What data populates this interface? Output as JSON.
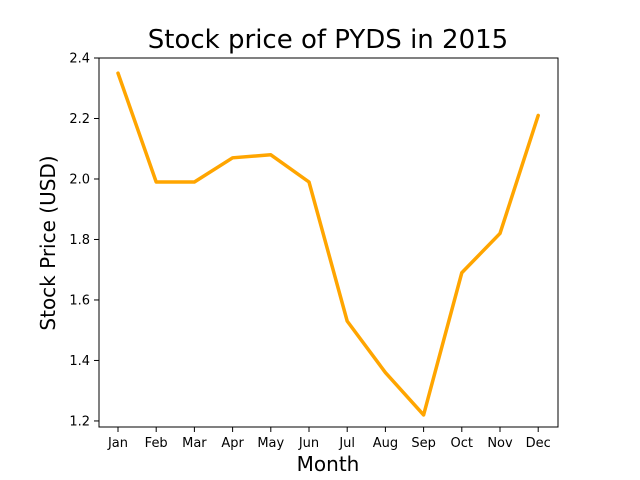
{
  "chart_data": {
    "type": "line",
    "title": "Stock price of PYDS in 2015",
    "xlabel": "Month",
    "ylabel": "Stock Price (USD)",
    "categories": [
      "Jan",
      "Feb",
      "Mar",
      "Apr",
      "May",
      "Jun",
      "Jul",
      "Aug",
      "Sep",
      "Oct",
      "Nov",
      "Dec"
    ],
    "series": [
      {
        "values": [
          2.35,
          1.99,
          1.99,
          2.07,
          2.08,
          1.99,
          1.53,
          1.36,
          1.22,
          1.69,
          1.82,
          2.21
        ]
      }
    ],
    "yticks": [
      "1.2",
      "1.4",
      "1.6",
      "1.8",
      "2.0",
      "2.2",
      "2.4"
    ],
    "ylim": [
      1.18,
      2.4
    ],
    "grid": false,
    "color": "#ffa500"
  }
}
